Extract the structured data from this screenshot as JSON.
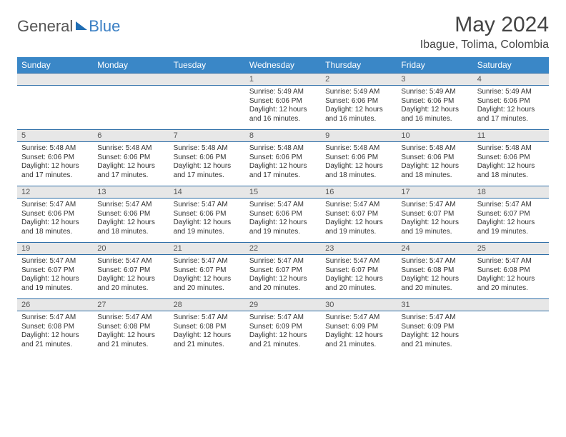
{
  "brand": {
    "part1": "General",
    "part2": "Blue"
  },
  "title": "May 2024",
  "location": "Ibague, Tolima, Colombia",
  "colors": {
    "header_bg": "#3a87c7",
    "header_text": "#ffffff",
    "daynum_bg": "#e7e7e7",
    "row_border": "#2f6fa8",
    "body_text": "#333333",
    "brand_blue": "#3a7fc4"
  },
  "weekdays": [
    "Sunday",
    "Monday",
    "Tuesday",
    "Wednesday",
    "Thursday",
    "Friday",
    "Saturday"
  ],
  "weeks": [
    [
      null,
      null,
      null,
      {
        "d": "1",
        "sr": "Sunrise: 5:49 AM",
        "ss": "Sunset: 6:06 PM",
        "dl1": "Daylight: 12 hours",
        "dl2": "and 16 minutes."
      },
      {
        "d": "2",
        "sr": "Sunrise: 5:49 AM",
        "ss": "Sunset: 6:06 PM",
        "dl1": "Daylight: 12 hours",
        "dl2": "and 16 minutes."
      },
      {
        "d": "3",
        "sr": "Sunrise: 5:49 AM",
        "ss": "Sunset: 6:06 PM",
        "dl1": "Daylight: 12 hours",
        "dl2": "and 16 minutes."
      },
      {
        "d": "4",
        "sr": "Sunrise: 5:49 AM",
        "ss": "Sunset: 6:06 PM",
        "dl1": "Daylight: 12 hours",
        "dl2": "and 17 minutes."
      }
    ],
    [
      {
        "d": "5",
        "sr": "Sunrise: 5:48 AM",
        "ss": "Sunset: 6:06 PM",
        "dl1": "Daylight: 12 hours",
        "dl2": "and 17 minutes."
      },
      {
        "d": "6",
        "sr": "Sunrise: 5:48 AM",
        "ss": "Sunset: 6:06 PM",
        "dl1": "Daylight: 12 hours",
        "dl2": "and 17 minutes."
      },
      {
        "d": "7",
        "sr": "Sunrise: 5:48 AM",
        "ss": "Sunset: 6:06 PM",
        "dl1": "Daylight: 12 hours",
        "dl2": "and 17 minutes."
      },
      {
        "d": "8",
        "sr": "Sunrise: 5:48 AM",
        "ss": "Sunset: 6:06 PM",
        "dl1": "Daylight: 12 hours",
        "dl2": "and 17 minutes."
      },
      {
        "d": "9",
        "sr": "Sunrise: 5:48 AM",
        "ss": "Sunset: 6:06 PM",
        "dl1": "Daylight: 12 hours",
        "dl2": "and 18 minutes."
      },
      {
        "d": "10",
        "sr": "Sunrise: 5:48 AM",
        "ss": "Sunset: 6:06 PM",
        "dl1": "Daylight: 12 hours",
        "dl2": "and 18 minutes."
      },
      {
        "d": "11",
        "sr": "Sunrise: 5:48 AM",
        "ss": "Sunset: 6:06 PM",
        "dl1": "Daylight: 12 hours",
        "dl2": "and 18 minutes."
      }
    ],
    [
      {
        "d": "12",
        "sr": "Sunrise: 5:47 AM",
        "ss": "Sunset: 6:06 PM",
        "dl1": "Daylight: 12 hours",
        "dl2": "and 18 minutes."
      },
      {
        "d": "13",
        "sr": "Sunrise: 5:47 AM",
        "ss": "Sunset: 6:06 PM",
        "dl1": "Daylight: 12 hours",
        "dl2": "and 18 minutes."
      },
      {
        "d": "14",
        "sr": "Sunrise: 5:47 AM",
        "ss": "Sunset: 6:06 PM",
        "dl1": "Daylight: 12 hours",
        "dl2": "and 19 minutes."
      },
      {
        "d": "15",
        "sr": "Sunrise: 5:47 AM",
        "ss": "Sunset: 6:06 PM",
        "dl1": "Daylight: 12 hours",
        "dl2": "and 19 minutes."
      },
      {
        "d": "16",
        "sr": "Sunrise: 5:47 AM",
        "ss": "Sunset: 6:07 PM",
        "dl1": "Daylight: 12 hours",
        "dl2": "and 19 minutes."
      },
      {
        "d": "17",
        "sr": "Sunrise: 5:47 AM",
        "ss": "Sunset: 6:07 PM",
        "dl1": "Daylight: 12 hours",
        "dl2": "and 19 minutes."
      },
      {
        "d": "18",
        "sr": "Sunrise: 5:47 AM",
        "ss": "Sunset: 6:07 PM",
        "dl1": "Daylight: 12 hours",
        "dl2": "and 19 minutes."
      }
    ],
    [
      {
        "d": "19",
        "sr": "Sunrise: 5:47 AM",
        "ss": "Sunset: 6:07 PM",
        "dl1": "Daylight: 12 hours",
        "dl2": "and 19 minutes."
      },
      {
        "d": "20",
        "sr": "Sunrise: 5:47 AM",
        "ss": "Sunset: 6:07 PM",
        "dl1": "Daylight: 12 hours",
        "dl2": "and 20 minutes."
      },
      {
        "d": "21",
        "sr": "Sunrise: 5:47 AM",
        "ss": "Sunset: 6:07 PM",
        "dl1": "Daylight: 12 hours",
        "dl2": "and 20 minutes."
      },
      {
        "d": "22",
        "sr": "Sunrise: 5:47 AM",
        "ss": "Sunset: 6:07 PM",
        "dl1": "Daylight: 12 hours",
        "dl2": "and 20 minutes."
      },
      {
        "d": "23",
        "sr": "Sunrise: 5:47 AM",
        "ss": "Sunset: 6:07 PM",
        "dl1": "Daylight: 12 hours",
        "dl2": "and 20 minutes."
      },
      {
        "d": "24",
        "sr": "Sunrise: 5:47 AM",
        "ss": "Sunset: 6:08 PM",
        "dl1": "Daylight: 12 hours",
        "dl2": "and 20 minutes."
      },
      {
        "d": "25",
        "sr": "Sunrise: 5:47 AM",
        "ss": "Sunset: 6:08 PM",
        "dl1": "Daylight: 12 hours",
        "dl2": "and 20 minutes."
      }
    ],
    [
      {
        "d": "26",
        "sr": "Sunrise: 5:47 AM",
        "ss": "Sunset: 6:08 PM",
        "dl1": "Daylight: 12 hours",
        "dl2": "and 21 minutes."
      },
      {
        "d": "27",
        "sr": "Sunrise: 5:47 AM",
        "ss": "Sunset: 6:08 PM",
        "dl1": "Daylight: 12 hours",
        "dl2": "and 21 minutes."
      },
      {
        "d": "28",
        "sr": "Sunrise: 5:47 AM",
        "ss": "Sunset: 6:08 PM",
        "dl1": "Daylight: 12 hours",
        "dl2": "and 21 minutes."
      },
      {
        "d": "29",
        "sr": "Sunrise: 5:47 AM",
        "ss": "Sunset: 6:09 PM",
        "dl1": "Daylight: 12 hours",
        "dl2": "and 21 minutes."
      },
      {
        "d": "30",
        "sr": "Sunrise: 5:47 AM",
        "ss": "Sunset: 6:09 PM",
        "dl1": "Daylight: 12 hours",
        "dl2": "and 21 minutes."
      },
      {
        "d": "31",
        "sr": "Sunrise: 5:47 AM",
        "ss": "Sunset: 6:09 PM",
        "dl1": "Daylight: 12 hours",
        "dl2": "and 21 minutes."
      },
      null
    ]
  ]
}
